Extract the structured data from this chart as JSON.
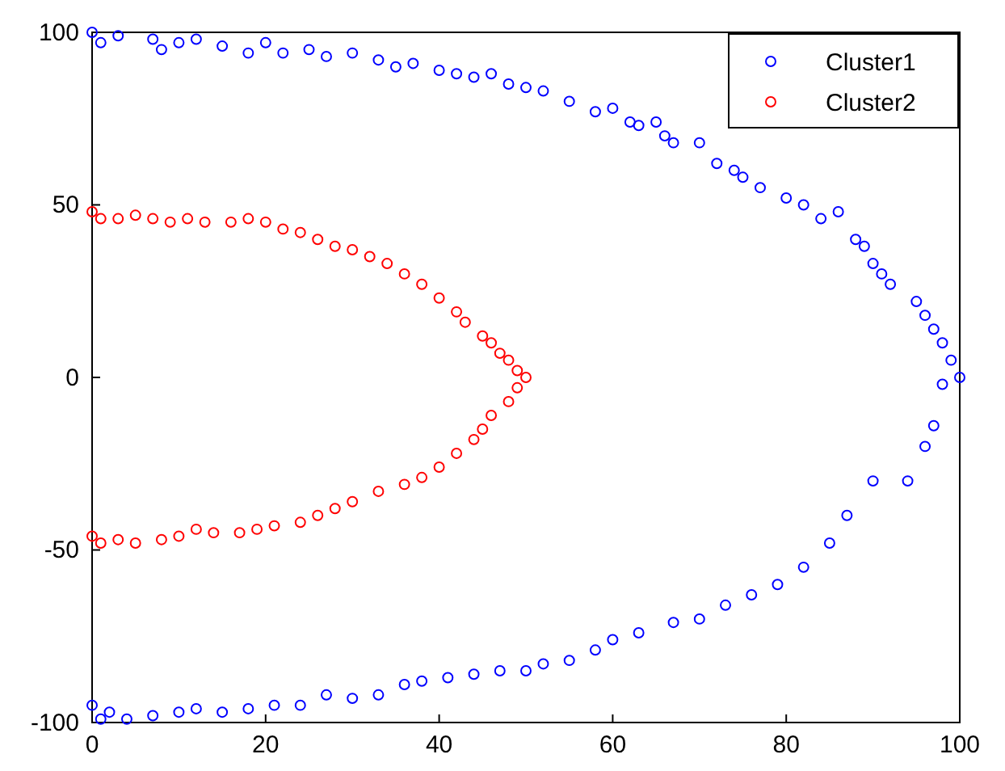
{
  "chart_data": {
    "type": "scatter",
    "marker": "circle",
    "legend": "top right",
    "grid": false,
    "xlim": [
      0,
      100
    ],
    "ylim": [
      -100,
      100
    ],
    "xticks": [
      0,
      20,
      40,
      60,
      80,
      100
    ],
    "yticks": [
      -100,
      -50,
      0,
      50,
      100
    ],
    "series": [
      {
        "name": "Cluster1",
        "color": "#0000ff",
        "x": [
          0,
          1,
          3,
          7,
          8,
          10,
          12,
          15,
          18,
          20,
          22,
          25,
          27,
          30,
          33,
          35,
          37,
          40,
          42,
          44,
          46,
          48,
          50,
          52,
          55,
          58,
          60,
          62,
          63,
          65,
          66,
          67,
          70,
          72,
          74,
          75,
          77,
          80,
          82,
          84,
          86,
          88,
          89,
          90,
          91,
          92,
          95,
          96,
          97,
          98,
          99,
          100,
          98,
          97,
          96,
          94,
          90,
          87,
          85,
          82,
          79,
          76,
          73,
          70,
          67,
          63,
          60,
          58,
          55,
          52,
          50,
          47,
          44,
          41,
          38,
          36,
          33,
          30,
          27,
          24,
          21,
          18,
          15,
          12,
          10,
          7,
          4,
          2,
          1,
          0
        ],
        "values": [
          100,
          97,
          99,
          98,
          95,
          97,
          98,
          96,
          94,
          97,
          94,
          95,
          93,
          94,
          92,
          90,
          91,
          89,
          88,
          87,
          88,
          85,
          84,
          83,
          80,
          77,
          78,
          74,
          73,
          74,
          70,
          68,
          68,
          62,
          60,
          58,
          55,
          52,
          50,
          46,
          48,
          40,
          38,
          33,
          30,
          27,
          22,
          18,
          14,
          10,
          5,
          0,
          -2,
          -14,
          -20,
          -30,
          -30,
          -40,
          -48,
          -55,
          -60,
          -63,
          -66,
          -70,
          -71,
          -74,
          -76,
          -79,
          -82,
          -83,
          -85,
          -85,
          -86,
          -87,
          -88,
          -89,
          -92,
          -93,
          -92,
          -95,
          -95,
          -96,
          -97,
          -96,
          -97,
          -98,
          -99,
          -97,
          -99,
          -95
        ]
      },
      {
        "name": "Cluster2",
        "color": "#ff0000",
        "x": [
          0,
          1,
          3,
          5,
          7,
          9,
          11,
          13,
          16,
          18,
          20,
          22,
          24,
          26,
          28,
          30,
          32,
          34,
          36,
          38,
          40,
          42,
          43,
          45,
          46,
          47,
          48,
          49,
          50,
          49,
          48,
          46,
          45,
          44,
          42,
          40,
          38,
          36,
          33,
          30,
          28,
          26,
          24,
          21,
          19,
          17,
          14,
          12,
          10,
          8,
          5,
          3,
          1,
          0
        ],
        "values": [
          48,
          46,
          46,
          47,
          46,
          45,
          46,
          45,
          45,
          46,
          45,
          43,
          42,
          40,
          38,
          37,
          35,
          33,
          30,
          27,
          23,
          19,
          16,
          12,
          10,
          7,
          5,
          2,
          0,
          -3,
          -7,
          -11,
          -15,
          -18,
          -22,
          -26,
          -29,
          -31,
          -33,
          -36,
          -38,
          -40,
          -42,
          -43,
          -44,
          -45,
          -45,
          -44,
          -46,
          -47,
          -48,
          -47,
          -48,
          -46
        ]
      }
    ]
  }
}
